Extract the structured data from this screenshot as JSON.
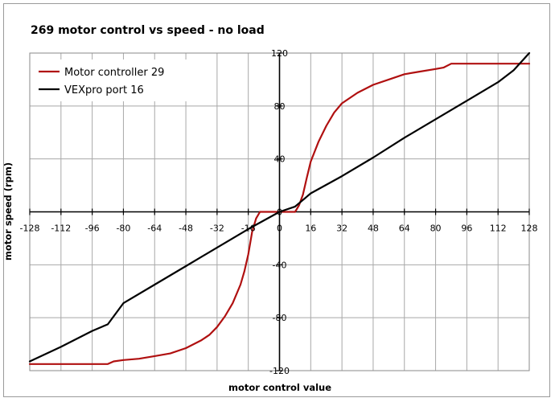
{
  "chart_data": {
    "type": "line",
    "title": "269 motor control vs speed - no load",
    "xlabel": "motor control value",
    "ylabel": "motor speed (rpm)",
    "xlim": [
      -128,
      128
    ],
    "ylim": [
      -120,
      120
    ],
    "x_ticks": [
      -128,
      -112,
      -96,
      -80,
      -64,
      -48,
      -32,
      -16,
      0,
      16,
      32,
      48,
      64,
      80,
      96,
      112,
      128
    ],
    "y_ticks": [
      -120,
      -80,
      -40,
      0,
      40,
      80,
      120
    ],
    "x_tick_labels": [
      "-128",
      "-112",
      "-96",
      "-80",
      "-64",
      "-48",
      "-32",
      "-16",
      "0",
      "16",
      "32",
      "48",
      "64",
      "80",
      "96",
      "112",
      "128"
    ],
    "y_tick_labels": [
      "-120",
      "-80",
      "-40",
      "0",
      "40",
      "80",
      "120"
    ],
    "grid": true,
    "legend_position": "top-left",
    "series": [
      {
        "name": "Motor controller 29",
        "color": "#b01010",
        "points": [
          [
            -128,
            -115
          ],
          [
            -120,
            -115
          ],
          [
            -112,
            -115
          ],
          [
            -104,
            -115
          ],
          [
            -96,
            -115
          ],
          [
            -88,
            -115
          ],
          [
            -85,
            -113
          ],
          [
            -80,
            -112
          ],
          [
            -72,
            -111
          ],
          [
            -64,
            -109
          ],
          [
            -56,
            -107
          ],
          [
            -48,
            -103
          ],
          [
            -40,
            -97
          ],
          [
            -36,
            -93
          ],
          [
            -32,
            -87
          ],
          [
            -28,
            -79
          ],
          [
            -24,
            -69
          ],
          [
            -20,
            -55
          ],
          [
            -18,
            -45
          ],
          [
            -16,
            -32
          ],
          [
            -14,
            -15
          ],
          [
            -12,
            -5
          ],
          [
            -10,
            0
          ],
          [
            0,
            0
          ],
          [
            8,
            0
          ],
          [
            10,
            5
          ],
          [
            12,
            13
          ],
          [
            14,
            26
          ],
          [
            16,
            38
          ],
          [
            20,
            53
          ],
          [
            24,
            65
          ],
          [
            28,
            75
          ],
          [
            32,
            82
          ],
          [
            40,
            90
          ],
          [
            48,
            96
          ],
          [
            56,
            100
          ],
          [
            64,
            104
          ],
          [
            72,
            106
          ],
          [
            80,
            108
          ],
          [
            84,
            109
          ],
          [
            88,
            112
          ],
          [
            96,
            112
          ],
          [
            104,
            112
          ],
          [
            112,
            112
          ],
          [
            120,
            112
          ],
          [
            128,
            112
          ]
        ]
      },
      {
        "name": "VEXpro port 16",
        "color": "#000000",
        "points": [
          [
            -128,
            -113
          ],
          [
            -112,
            -102
          ],
          [
            -96,
            -90
          ],
          [
            -88,
            -85
          ],
          [
            -80,
            -69
          ],
          [
            -64,
            -55
          ],
          [
            -48,
            -41
          ],
          [
            -32,
            -27
          ],
          [
            -16,
            -13
          ],
          [
            0,
            0
          ],
          [
            8,
            4
          ],
          [
            16,
            14
          ],
          [
            32,
            27
          ],
          [
            48,
            41
          ],
          [
            64,
            56
          ],
          [
            80,
            70
          ],
          [
            96,
            84
          ],
          [
            112,
            98
          ],
          [
            120,
            107
          ],
          [
            128,
            120
          ]
        ]
      }
    ]
  }
}
